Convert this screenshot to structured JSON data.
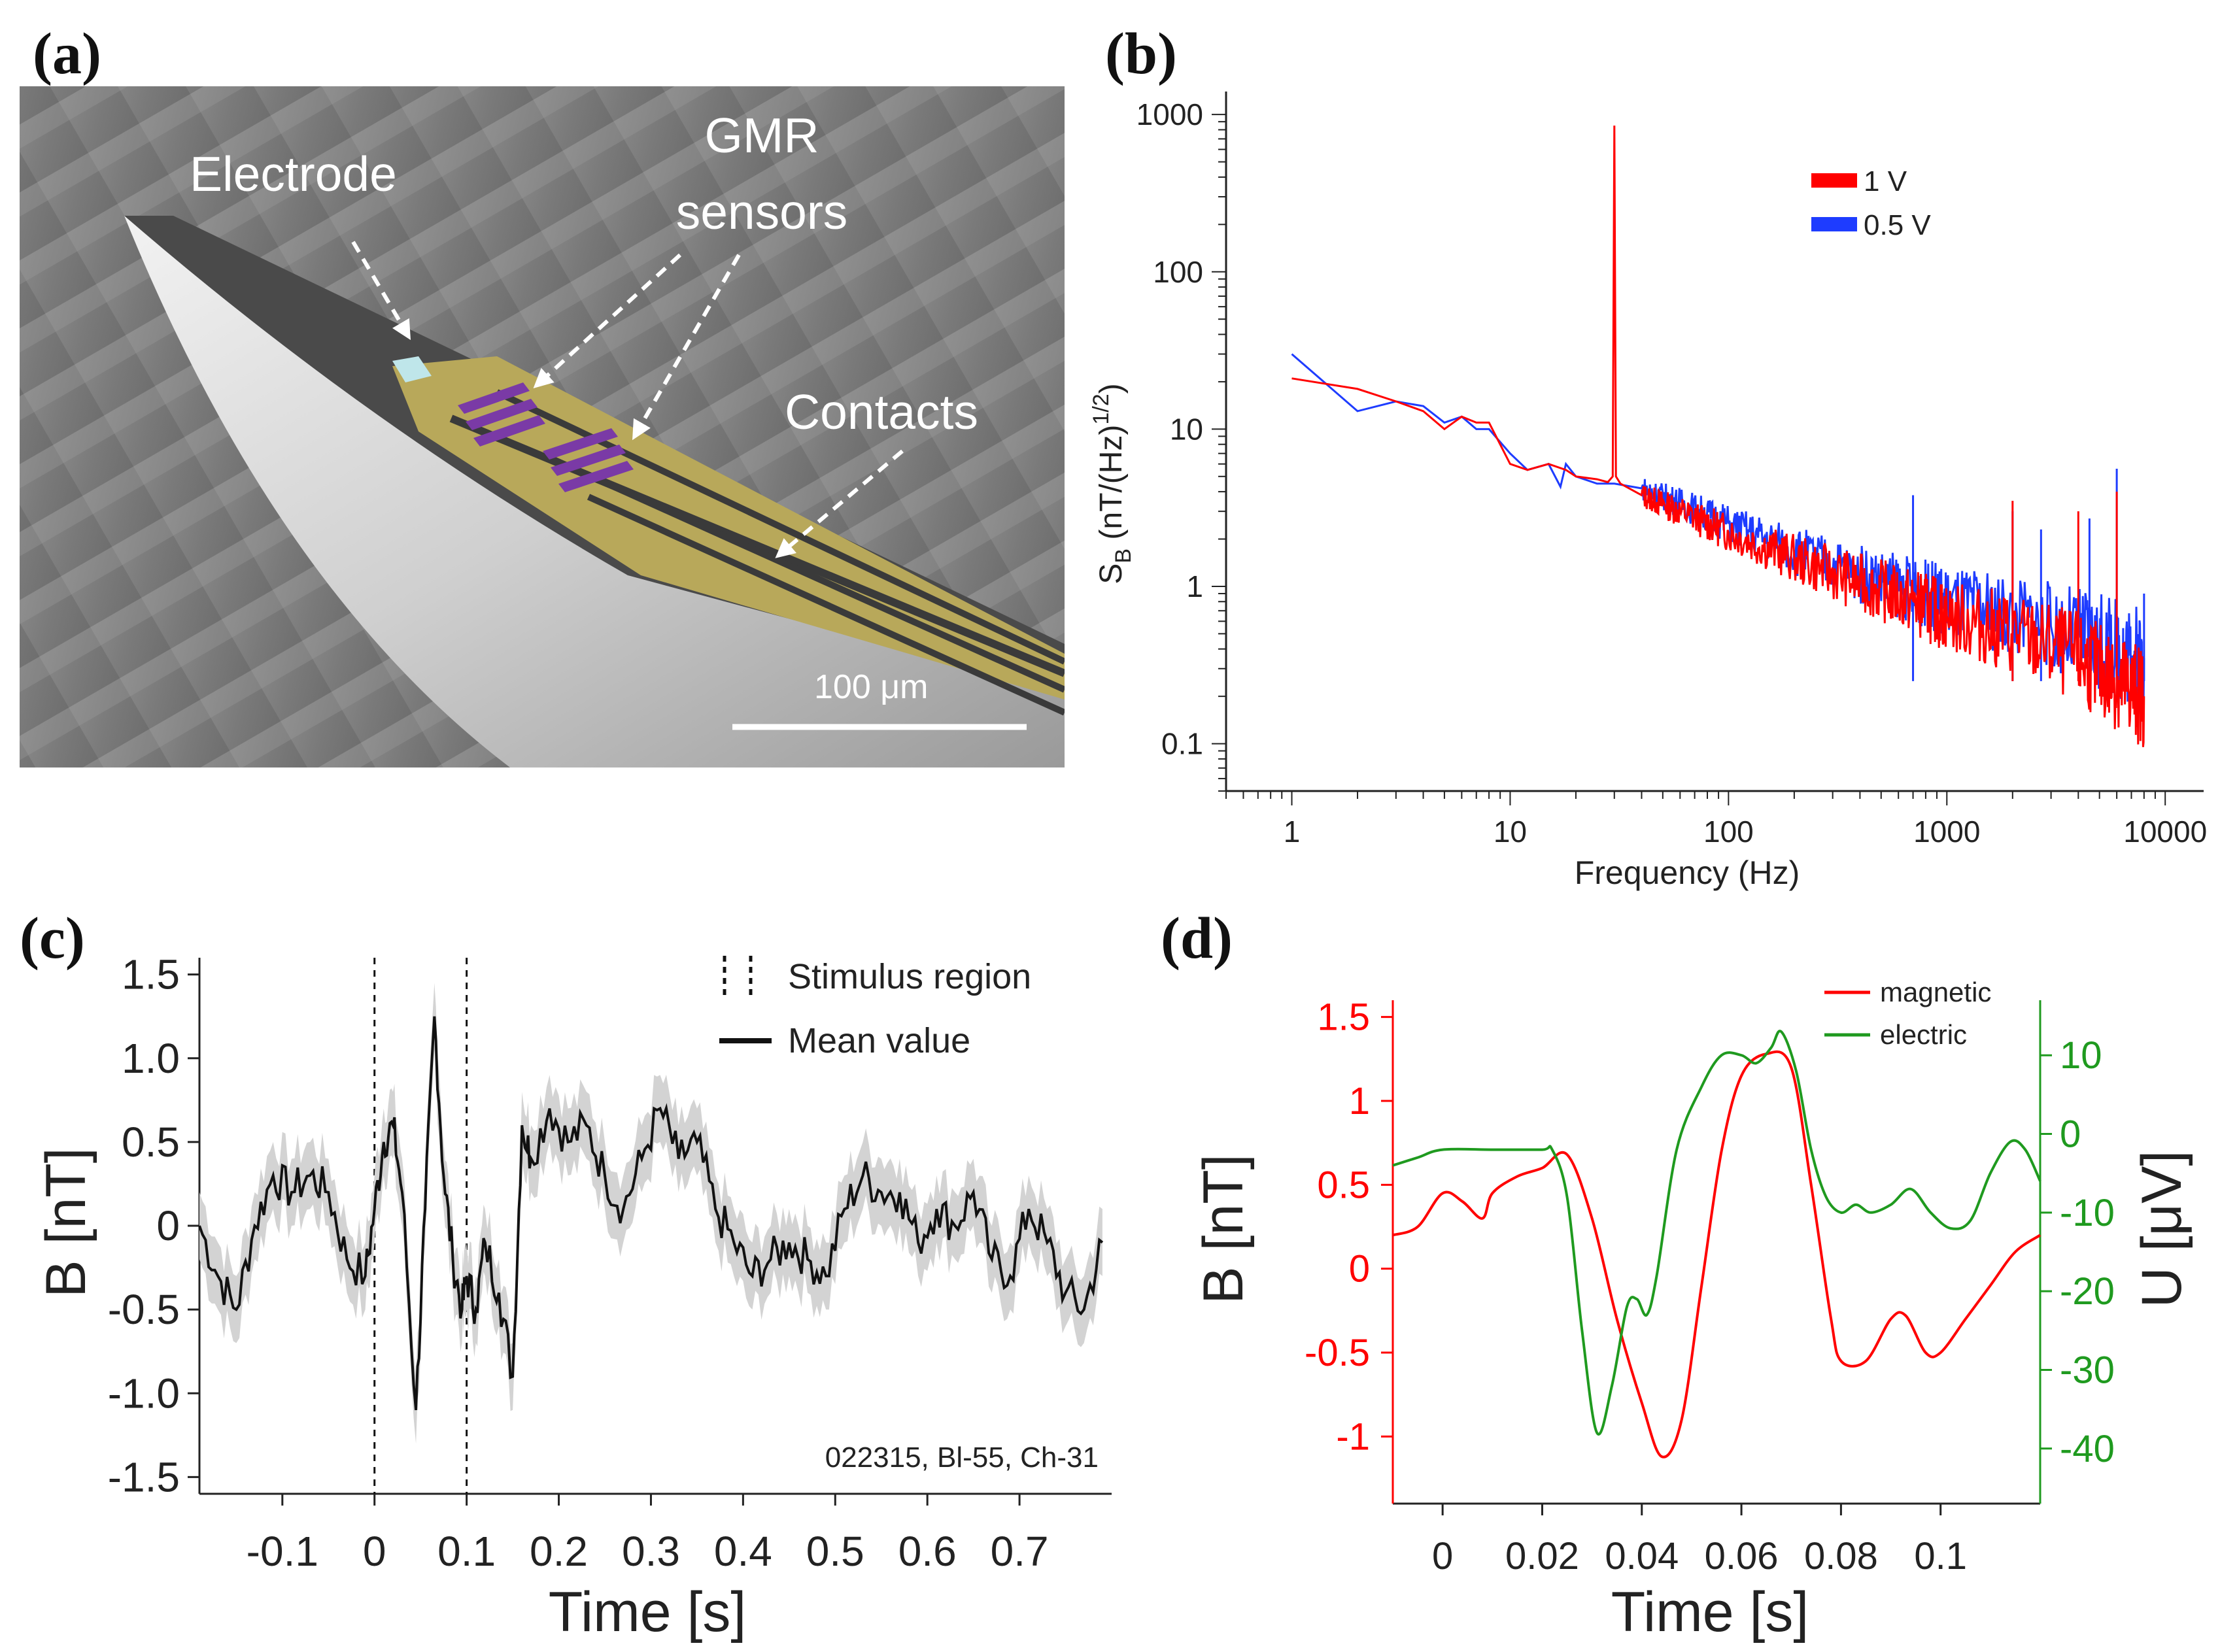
{
  "panels": {
    "a": {
      "label": "(a)",
      "annotations": [
        "Electrode",
        "GMR",
        "sensors",
        "Contacts"
      ],
      "scale_bar": "100 μm"
    }
  },
  "colors": {
    "red": "#ff0000",
    "blue": "#1e3cff",
    "green": "#1f9a1f",
    "black": "#111111",
    "band": "#d3d3d3",
    "gold": "#b8a85a",
    "purple": "#7a3aa6"
  },
  "chart_data": [
    {
      "id": "b",
      "label": "(b)",
      "type": "line",
      "xscale": "log",
      "yscale": "log",
      "xlabel": "Frequency (Hz)",
      "ylabel_main": "S",
      "ylabel_sub": "B",
      "ylabel_rest": " (nT/(Hz)",
      "ylabel_sup": "1/2",
      "ylabel_end": ")",
      "xlim": [
        0.5,
        15000
      ],
      "ylim": [
        0.05,
        1400
      ],
      "xticks": [
        1,
        10,
        100,
        1000,
        10000
      ],
      "xtick_labels": [
        "1",
        "10",
        "100",
        "1000",
        "10000"
      ],
      "yticks": [
        0.1,
        1,
        10,
        100,
        1000
      ],
      "ytick_labels": [
        "0.1",
        "1",
        "10",
        "100",
        "1000"
      ],
      "legend": [
        "1 V",
        "0.5 V"
      ],
      "series": [
        {
          "name": "1 V",
          "color": "red",
          "x": [
            1,
            2,
            3,
            4,
            5,
            6,
            7,
            8,
            10,
            12,
            15,
            18,
            20,
            25,
            28,
            29.5,
            30,
            30.5,
            32,
            40,
            60,
            100,
            200,
            400,
            700,
            1000,
            2000,
            4000,
            6000,
            8000
          ],
          "y": [
            21,
            18,
            15,
            13,
            10,
            12,
            11,
            11,
            6,
            5.5,
            6,
            5.5,
            5,
            4.8,
            4.6,
            5,
            850,
            5,
            4.5,
            3.8,
            3,
            2.2,
            1.5,
            1.05,
            0.8,
            0.65,
            0.5,
            0.35,
            0.25,
            0.2
          ],
          "spikes": [
            [
              2000,
              3.5
            ],
            [
              4000,
              3
            ],
            [
              6000,
              4
            ]
          ]
        },
        {
          "name": "0.5 V",
          "color": "blue",
          "x": [
            1,
            2,
            3,
            4,
            5,
            6,
            7,
            8,
            10,
            12,
            15,
            17,
            18,
            20,
            25,
            30,
            40,
            60,
            100,
            200,
            400,
            700,
            1000,
            2000,
            4000,
            6000,
            8000
          ],
          "y": [
            30,
            13,
            15,
            14,
            11,
            12,
            10,
            10,
            7,
            5.5,
            6,
            4.3,
            6,
            5,
            4.5,
            4.5,
            4.2,
            3.4,
            2.5,
            1.7,
            1.2,
            0.95,
            0.8,
            0.65,
            0.5,
            0.4,
            0.35
          ],
          "spikes": [
            [
              700,
              3.8
            ],
            [
              2000,
              3
            ],
            [
              2700,
              2.3
            ],
            [
              4500,
              2.7
            ],
            [
              6000,
              5.6
            ],
            [
              8000,
              0.9
            ]
          ]
        }
      ]
    },
    {
      "id": "c",
      "label": "(c)",
      "type": "line",
      "xlabel": "Time [s]",
      "ylabel": "B [nT]",
      "xlim": [
        -0.19,
        0.8
      ],
      "ylim": [
        -1.6,
        1.6
      ],
      "xticks": [
        -0.1,
        0,
        0.1,
        0.2,
        0.3,
        0.4,
        0.5,
        0.6,
        0.7
      ],
      "xtick_labels": [
        "-0.1",
        "0",
        "0.1",
        "0.2",
        "0.3",
        "0.4",
        "0.5",
        "0.6",
        "0.7"
      ],
      "yticks": [
        -1.5,
        -1.0,
        -0.5,
        0,
        0.5,
        1.0,
        1.5
      ],
      "ytick_labels": [
        "-1.5",
        "-1.0",
        "-0.5",
        "0",
        "0.5",
        "1.0",
        "1.5"
      ],
      "stimulus_region": [
        0,
        0.1
      ],
      "legend": [
        "Stimulus region",
        "Mean value"
      ],
      "annotation": "022315, Bl-55, Ch-31",
      "series": [
        {
          "name": "Mean value",
          "color": "black",
          "band": 0.2,
          "x": [
            -0.19,
            -0.17,
            -0.15,
            -0.13,
            -0.11,
            -0.09,
            -0.07,
            -0.05,
            -0.03,
            -0.01,
            0,
            0.01,
            0.02,
            0.03,
            0.045,
            0.055,
            0.065,
            0.075,
            0.085,
            0.095,
            0.1,
            0.11,
            0.12,
            0.135,
            0.15,
            0.16,
            0.17,
            0.19,
            0.21,
            0.23,
            0.25,
            0.27,
            0.29,
            0.31,
            0.33,
            0.35,
            0.37,
            0.39,
            0.41,
            0.43,
            0.45,
            0.47,
            0.49,
            0.51,
            0.53,
            0.55,
            0.57,
            0.59,
            0.61,
            0.63,
            0.65,
            0.67,
            0.69,
            0.71,
            0.73,
            0.75,
            0.77,
            0.79
          ],
          "y": [
            0,
            -0.3,
            -0.5,
            0,
            0.3,
            0.2,
            0.3,
            0.2,
            -0.2,
            -0.3,
            0.1,
            0.5,
            0.6,
            0.2,
            -1.1,
            0.1,
            1.25,
            0.3,
            -0.2,
            -0.5,
            -0.3,
            -0.5,
            -0.1,
            -0.4,
            -0.9,
            0.6,
            0.4,
            0.7,
            0.5,
            0.6,
            0.3,
            0.1,
            0.4,
            0.7,
            0.4,
            0.5,
            0.1,
            -0.1,
            -0.3,
            -0.2,
            -0.1,
            -0.2,
            -0.3,
            0.1,
            0.3,
            0.2,
            0.2,
            -0.1,
            0.1,
            0,
            0.2,
            -0.2,
            -0.3,
            0.1,
            -0.1,
            -0.4,
            -0.5,
            -0.1
          ]
        }
      ]
    },
    {
      "id": "d",
      "label": "(d)",
      "type": "line",
      "xlabel": "Time [s]",
      "ylabel_left": "B [nT]",
      "ylabel_right": "U [μV]",
      "xlim": [
        -0.01,
        0.12
      ],
      "ylim_left": [
        -1.4,
        1.6
      ],
      "ylim_right": [
        -47,
        17
      ],
      "xticks": [
        0,
        0.02,
        0.04,
        0.06,
        0.08,
        0.1
      ],
      "xtick_labels": [
        "0",
        "0.02",
        "0.04",
        "0.06",
        "0.08",
        "0.1"
      ],
      "yticks_left": [
        -1,
        -0.5,
        0,
        0.5,
        1,
        1.5
      ],
      "ytick_labels_left": [
        "-1",
        "-0.5",
        "0",
        "0.5",
        "1",
        "1.5"
      ],
      "yticks_right": [
        -40,
        -30,
        -20,
        -10,
        0,
        10
      ],
      "ytick_labels_right": [
        "-40",
        "-30",
        "-20",
        "-10",
        "0",
        "10"
      ],
      "legend": [
        "magnetic",
        "electric"
      ],
      "series": [
        {
          "name": "magnetic",
          "color": "red",
          "axis": "left",
          "x": [
            -0.01,
            -0.005,
            0,
            0.004,
            0.008,
            0.01,
            0.015,
            0.02,
            0.025,
            0.03,
            0.035,
            0.04,
            0.044,
            0.048,
            0.052,
            0.056,
            0.06,
            0.065,
            0.07,
            0.074,
            0.078,
            0.08,
            0.085,
            0.09,
            0.093,
            0.097,
            0.1,
            0.105,
            0.11,
            0.115,
            0.12
          ],
          "y": [
            0.2,
            0.25,
            0.45,
            0.4,
            0.3,
            0.45,
            0.55,
            0.6,
            0.68,
            0.3,
            -0.3,
            -0.8,
            -1.12,
            -0.9,
            -0.1,
            0.7,
            1.15,
            1.28,
            1.2,
            0.5,
            -0.3,
            -0.55,
            -0.55,
            -0.3,
            -0.28,
            -0.5,
            -0.5,
            -0.3,
            -0.1,
            0.1,
            0.2
          ]
        },
        {
          "name": "electric",
          "color": "green",
          "axis": "right",
          "x": [
            -0.01,
            -0.005,
            0,
            0.01,
            0.02,
            0.022,
            0.025,
            0.028,
            0.031,
            0.034,
            0.037,
            0.039,
            0.041,
            0.043,
            0.047,
            0.052,
            0.056,
            0.06,
            0.063,
            0.066,
            0.068,
            0.071,
            0.074,
            0.077,
            0.08,
            0.083,
            0.086,
            0.09,
            0.094,
            0.098,
            0.102,
            0.106,
            0.11,
            0.114,
            0.117,
            0.12
          ],
          "y": [
            -4,
            -3,
            -2,
            -2,
            -2,
            -2,
            -8,
            -25,
            -38,
            -32,
            -22,
            -21,
            -23,
            -18,
            -2,
            6,
            10,
            10,
            9,
            11,
            13,
            8,
            -2,
            -8,
            -10,
            -9,
            -10,
            -9,
            -7,
            -10,
            -12,
            -11,
            -5,
            -1,
            -2,
            -6
          ]
        }
      ]
    }
  ]
}
